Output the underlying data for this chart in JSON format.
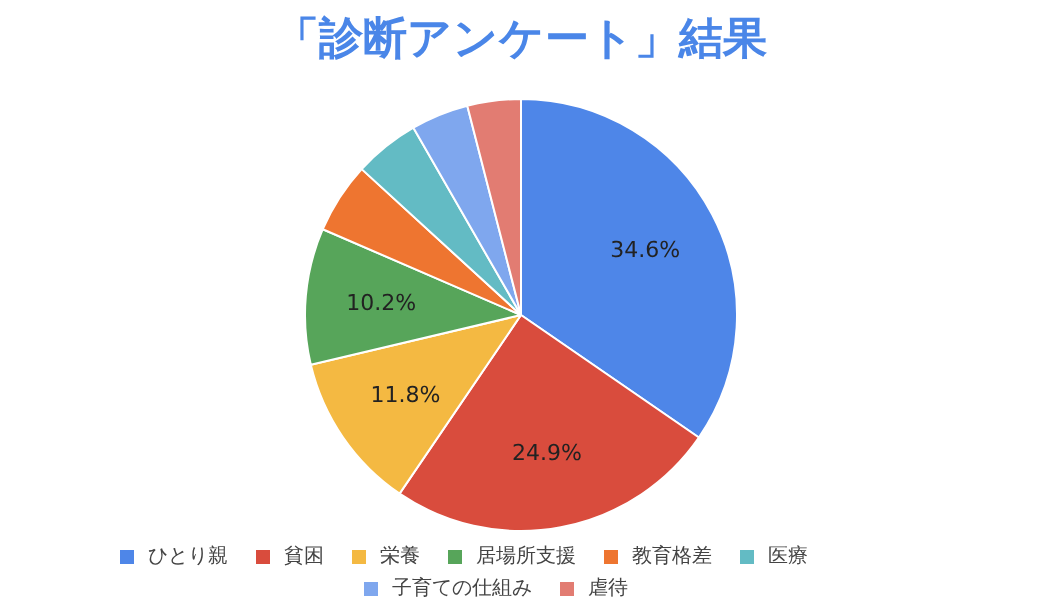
{
  "chart_data": {
    "type": "pie",
    "title": "「診断アンケート」結果",
    "categories": [
      "ひとり親",
      "貧困",
      "栄養",
      "居場所支援",
      "教育格差",
      "医療",
      "子育ての仕組み",
      "虐待"
    ],
    "values": [
      34.6,
      24.9,
      11.8,
      10.2,
      5.3,
      4.9,
      4.3,
      4.0
    ],
    "colors": [
      "#4e86e8",
      "#d94c3d",
      "#f4b942",
      "#57a55a",
      "#ee7530",
      "#63bbc4",
      "#7fa7ee",
      "#e27c72"
    ],
    "value_labels": [
      "34.6%",
      "24.9%",
      "11.8%",
      "10.2%",
      null,
      null,
      null,
      null
    ],
    "legend": "bottom"
  }
}
